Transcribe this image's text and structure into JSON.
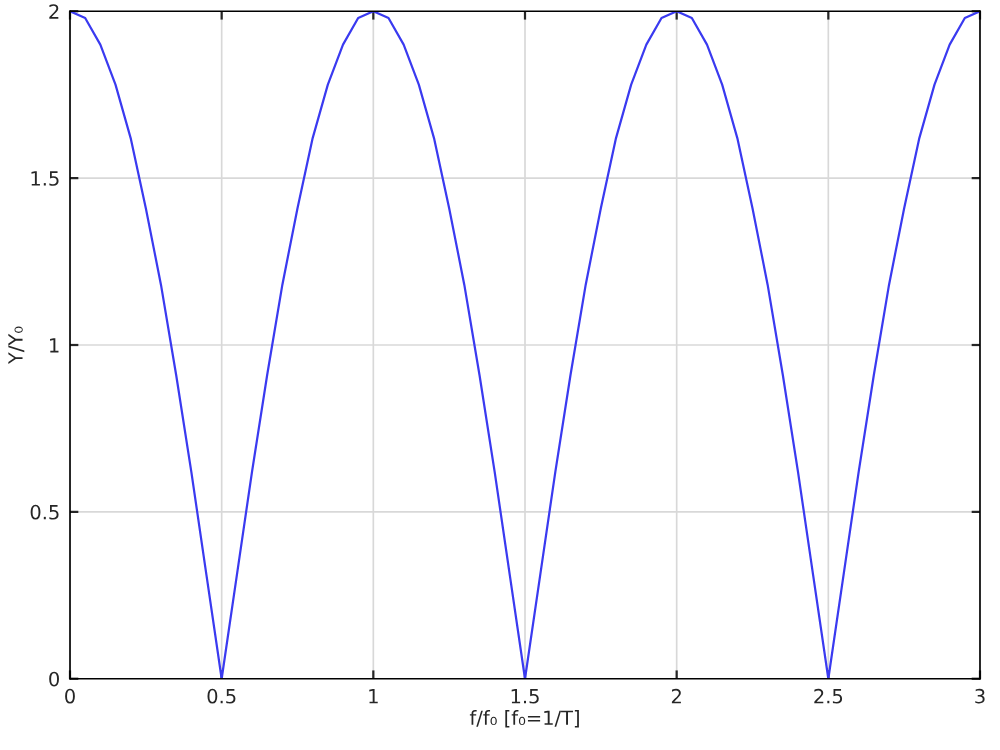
{
  "chart_data": {
    "type": "line",
    "xlabel": "f/f₀ [f₀=1/T]",
    "ylabel": "Y/Y₀",
    "x": [
      0,
      0.05,
      0.1,
      0.15,
      0.2,
      0.25,
      0.3,
      0.35,
      0.4,
      0.45,
      0.5,
      0.55,
      0.6,
      0.65,
      0.7,
      0.75,
      0.8,
      0.85,
      0.9,
      0.95,
      1,
      1.05,
      1.1,
      1.15,
      1.2,
      1.25,
      1.3,
      1.35,
      1.4,
      1.45,
      1.5,
      1.55,
      1.6,
      1.65,
      1.7,
      1.75,
      1.8,
      1.85,
      1.9,
      1.95,
      2,
      2.05,
      2.1,
      2.15,
      2.2,
      2.25,
      2.3,
      2.35,
      2.4,
      2.45,
      2.5,
      2.55,
      2.6,
      2.65,
      2.7,
      2.75,
      2.8,
      2.85,
      2.9,
      2.95,
      3
    ],
    "series": [
      {
        "color": "#3a3af0",
        "values": [
          2,
          1.98,
          1.9,
          1.78,
          1.62,
          1.41,
          1.18,
          0.91,
          0.62,
          0.31,
          0,
          0.31,
          0.62,
          0.91,
          1.18,
          1.41,
          1.62,
          1.78,
          1.9,
          1.98,
          2,
          1.98,
          1.9,
          1.78,
          1.62,
          1.41,
          1.18,
          0.91,
          0.62,
          0.31,
          0,
          0.31,
          0.62,
          0.91,
          1.18,
          1.41,
          1.62,
          1.78,
          1.9,
          1.98,
          2,
          1.98,
          1.9,
          1.78,
          1.62,
          1.41,
          1.18,
          0.91,
          0.62,
          0.31,
          0,
          0.31,
          0.62,
          0.91,
          1.18,
          1.41,
          1.62,
          1.78,
          1.9,
          1.98,
          2
        ]
      }
    ],
    "xlim": [
      0,
      3
    ],
    "xticks": [
      0,
      0.5,
      1,
      1.5,
      2,
      2.5,
      3
    ],
    "ylim": [
      0,
      2
    ],
    "yticks": [
      0,
      0.5,
      1,
      1.5,
      2
    ],
    "grid": true,
    "marker": "none",
    "line_style": "solid"
  }
}
